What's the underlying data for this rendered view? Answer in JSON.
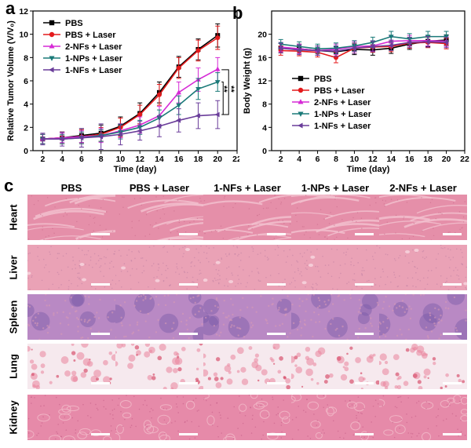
{
  "panel_labels": {
    "a": "a",
    "b": "b",
    "c": "c"
  },
  "chart_data": [
    {
      "type": "line",
      "panel": "a",
      "xlabel": "Time (day)",
      "ylabel": "Relative Tumor Volume  (V/V₀)",
      "xlim": [
        1,
        22
      ],
      "ylim": [
        0,
        12
      ],
      "xticks": [
        2,
        4,
        6,
        8,
        10,
        12,
        14,
        16,
        18,
        20,
        22
      ],
      "yticks": [
        0,
        2,
        4,
        6,
        8,
        10,
        12
      ],
      "x": [
        2,
        4,
        6,
        8,
        10,
        12,
        14,
        16,
        18,
        20
      ],
      "legend_position": "top-left",
      "significance": [
        "**",
        "**"
      ],
      "series": [
        {
          "name": "PBS",
          "color": "#000000",
          "marker": "square",
          "values": [
            1.0,
            1.1,
            1.3,
            1.5,
            2.1,
            3.2,
            5.0,
            7.2,
            8.7,
            9.9
          ],
          "errors": [
            0.4,
            0.5,
            0.6,
            0.7,
            0.8,
            0.9,
            0.9,
            0.9,
            0.9,
            1.0
          ]
        },
        {
          "name": "PBS + Laser",
          "color": "#e41a1c",
          "marker": "circle",
          "values": [
            1.0,
            1.1,
            1.2,
            1.4,
            2.0,
            3.1,
            4.8,
            7.1,
            8.6,
            9.7
          ],
          "errors": [
            0.4,
            0.5,
            0.6,
            0.6,
            0.8,
            0.8,
            0.9,
            0.9,
            0.9,
            1.0
          ]
        },
        {
          "name": "2-NFs + Laser",
          "color": "#d62ad6",
          "marker": "triangle-up",
          "values": [
            1.0,
            1.1,
            1.2,
            1.3,
            1.7,
            2.2,
            3.0,
            5.0,
            6.1,
            7.0
          ],
          "errors": [
            0.4,
            0.4,
            0.5,
            0.6,
            0.6,
            0.7,
            0.8,
            0.9,
            1.0,
            1.0
          ]
        },
        {
          "name": "1-NPs + Laser",
          "color": "#1a7a78",
          "marker": "triangle-down",
          "values": [
            1.0,
            1.0,
            1.1,
            1.3,
            1.6,
            2.0,
            2.8,
            3.9,
            5.3,
            5.9
          ],
          "errors": [
            0.4,
            0.4,
            0.5,
            0.5,
            0.6,
            0.6,
            0.7,
            0.8,
            0.9,
            0.8
          ]
        },
        {
          "name": "1-NFs + Laser",
          "color": "#6a3d9a",
          "marker": "triangle-left",
          "values": [
            1.0,
            1.0,
            1.1,
            1.2,
            1.4,
            1.7,
            2.1,
            2.6,
            3.0,
            3.1
          ],
          "errors": [
            0.5,
            0.6,
            0.8,
            1.1,
            0.9,
            0.8,
            0.9,
            1.0,
            1.1,
            1.2
          ]
        }
      ]
    },
    {
      "type": "line",
      "panel": "b",
      "xlabel": "Time (day)",
      "ylabel": "Body Weight (g)",
      "xlim": [
        1,
        22
      ],
      "ylim": [
        0,
        24
      ],
      "xticks": [
        2,
        4,
        6,
        8,
        10,
        12,
        14,
        16,
        18,
        20,
        22
      ],
      "yticks": [
        0,
        4,
        8,
        12,
        16,
        20
      ],
      "x": [
        2,
        4,
        6,
        8,
        10,
        12,
        14,
        16,
        18,
        20
      ],
      "legend_position": "center",
      "series": [
        {
          "name": "PBS",
          "color": "#000000",
          "marker": "square",
          "values": [
            17.6,
            17.5,
            17.2,
            17.0,
            17.4,
            17.3,
            17.6,
            18.3,
            18.8,
            19.0
          ],
          "errors": [
            0.8,
            0.8,
            0.8,
            0.9,
            0.9,
            0.9,
            0.9,
            0.9,
            0.9,
            0.9
          ]
        },
        {
          "name": "PBS + Laser",
          "color": "#e41a1c",
          "marker": "circle",
          "values": [
            17.2,
            17.1,
            16.9,
            16.0,
            17.6,
            17.8,
            17.9,
            18.5,
            18.6,
            18.4
          ],
          "errors": [
            0.8,
            0.8,
            0.8,
            0.9,
            0.9,
            0.9,
            0.9,
            0.9,
            0.9,
            0.9
          ]
        },
        {
          "name": "2-NFs + Laser",
          "color": "#d62ad6",
          "marker": "triangle-up",
          "values": [
            17.8,
            17.5,
            17.2,
            17.4,
            17.9,
            18.0,
            18.8,
            18.9,
            18.9,
            18.8
          ],
          "errors": [
            0.8,
            0.8,
            0.8,
            0.9,
            0.9,
            0.9,
            0.9,
            0.9,
            0.9,
            0.9
          ]
        },
        {
          "name": "1-NPs + Laser",
          "color": "#1a7a78",
          "marker": "triangle-down",
          "values": [
            18.3,
            17.9,
            17.5,
            17.6,
            18.0,
            18.6,
            19.6,
            19.2,
            19.6,
            19.6
          ],
          "errors": [
            0.8,
            0.8,
            0.8,
            0.9,
            0.9,
            0.9,
            0.9,
            0.9,
            0.9,
            0.9
          ]
        },
        {
          "name": "1-NFs + Laser",
          "color": "#6a3d9a",
          "marker": "triangle-left",
          "values": [
            17.6,
            17.3,
            17.2,
            17.1,
            17.6,
            17.9,
            18.1,
            18.6,
            18.7,
            18.6
          ],
          "errors": [
            0.8,
            0.8,
            0.8,
            0.9,
            0.9,
            0.9,
            0.9,
            0.9,
            0.9,
            0.9
          ]
        }
      ]
    }
  ],
  "histology": {
    "columns": [
      "PBS",
      "PBS + Laser",
      "1-NFs + Laser",
      "1-NPs + Laser",
      "2-NFs + Laser"
    ],
    "rows": [
      {
        "label": "Heart",
        "tissue": "heart",
        "base_color": "#e58fa9",
        "accent_color": "#f3c2d0",
        "dot_color": "#c96a8a"
      },
      {
        "label": "Liver",
        "tissue": "liver",
        "base_color": "#eaa2b6",
        "accent_color": "#f5cdd8",
        "dot_color": "#b87aa0"
      },
      {
        "label": "Spleen",
        "tissue": "spleen",
        "base_color": "#b989c4",
        "accent_color": "#d79ab6",
        "dot_color": "#7b5ca8"
      },
      {
        "label": "Lung",
        "tissue": "lung",
        "base_color": "#f6e9ee",
        "accent_color": "#e9849c",
        "dot_color": "#d9536f"
      },
      {
        "label": "Kidney",
        "tissue": "kidney",
        "base_color": "#e68aa9",
        "accent_color": "#f0b3c4",
        "dot_color": "#c45d86"
      }
    ]
  }
}
